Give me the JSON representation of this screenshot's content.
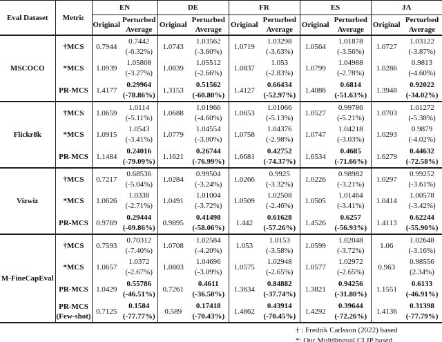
{
  "table": {
    "header": {
      "eval_dataset": "Eval Dataset",
      "metric": "Metric",
      "languages": [
        "EN",
        "DE",
        "FR",
        "ES",
        "JA"
      ],
      "original_label": "Original",
      "perturbed_label_line1": "Perturbed",
      "perturbed_label_line2": "Average"
    },
    "groups": [
      {
        "dataset": "MSCOCO",
        "rows": [
          {
            "metric": "†MCS",
            "metric2": "",
            "bold": false,
            "cells": [
              {
                "orig": "0.7944",
                "pert": "0.7442",
                "pct": "(-6.32%)"
              },
              {
                "orig": "1.0743",
                "pert": "1.03562",
                "pct": "(-3.60%)"
              },
              {
                "orig": "1.0719",
                "pert": "1.03298",
                "pct": "(-3.63%)"
              },
              {
                "orig": "1.0564",
                "pert": "1.01878",
                "pct": "(-3.56%)"
              },
              {
                "orig": "1.0727",
                "pert": "1.03122",
                "pct": "(-3.87%)"
              }
            ]
          },
          {
            "metric": "*MCS",
            "metric2": "",
            "bold": false,
            "cells": [
              {
                "orig": "1.0939",
                "pert": "1.05808",
                "pct": "(-3.27%)"
              },
              {
                "orig": "1.0839",
                "pert": "1.05512",
                "pct": "(-2.66%)"
              },
              {
                "orig": "1.0837",
                "pert": "1.053",
                "pct": "(-2.83%)"
              },
              {
                "orig": "1.0799",
                "pert": "1.04988",
                "pct": "(-2.78%)"
              },
              {
                "orig": "1.0286",
                "pert": "0.9813",
                "pct": "(-4.60%)"
              }
            ]
          },
          {
            "metric": "PR-MCS",
            "metric2": "",
            "bold": true,
            "cells": [
              {
                "orig": "1.4177",
                "pert": "0.29964",
                "pct": "(-78.86%)"
              },
              {
                "orig": "1.3153",
                "pert": "0.51562",
                "pct": "(-60.80%)"
              },
              {
                "orig": "1.4127",
                "pert": "0.66434",
                "pct": "(-52.97%)"
              },
              {
                "orig": "1.4086",
                "pert": "0.6814",
                "pct": "(-51.63%)"
              },
              {
                "orig": "1.3948",
                "pert": "0.92022",
                "pct": "(-34.02%)"
              }
            ]
          }
        ]
      },
      {
        "dataset": "Flickr8k",
        "rows": [
          {
            "metric": "†MCS",
            "metric2": "",
            "bold": false,
            "cells": [
              {
                "orig": "1.0659",
                "pert": "1.0114",
                "pct": "(-5.11%)"
              },
              {
                "orig": "1.0688",
                "pert": "1.01966",
                "pct": "(-4.60%)"
              },
              {
                "orig": "1.0653",
                "pert": "1.01066",
                "pct": "(-5.13%)"
              },
              {
                "orig": "1.0527",
                "pert": "0.99786",
                "pct": "(-5.21%)"
              },
              {
                "orig": "1.0703",
                "pert": "1.01272",
                "pct": "(-5.38%)"
              }
            ]
          },
          {
            "metric": "*MCS",
            "metric2": "",
            "bold": false,
            "cells": [
              {
                "orig": "1.0915",
                "pert": "1.0543",
                "pct": "(-3.41%)"
              },
              {
                "orig": "1.0779",
                "pert": "1.04554",
                "pct": "(-3.00%)"
              },
              {
                "orig": "1.0758",
                "pert": "1.04376",
                "pct": "(-2.98%)"
              },
              {
                "orig": "1.0747",
                "pert": "1.04218",
                "pct": "(-3.03%)"
              },
              {
                "orig": "1.0293",
                "pert": "0.9879",
                "pct": "(-4.02%)"
              }
            ]
          },
          {
            "metric": "PR-MCS",
            "metric2": "",
            "bold": true,
            "cells": [
              {
                "orig": "1.1484",
                "pert": "0.24016",
                "pct": "(-79.09%)"
              },
              {
                "orig": "1.1621",
                "pert": "0.26744",
                "pct": "(-76.99%)"
              },
              {
                "orig": "1.6681",
                "pert": "0.42752",
                "pct": "(-74.37%)"
              },
              {
                "orig": "1.6534",
                "pert": "0.4685",
                "pct": "(-71.66%)"
              },
              {
                "orig": "1.6279",
                "pert": "0.44632",
                "pct": "(-72.58%)"
              }
            ]
          }
        ]
      },
      {
        "dataset": "Vizwiz",
        "rows": [
          {
            "metric": "†MCS",
            "metric2": "",
            "bold": false,
            "cells": [
              {
                "orig": "0.7217",
                "pert": "0.68536",
                "pct": "(-5.04%)"
              },
              {
                "orig": "1.0284",
                "pert": "0.99504",
                "pct": "(-3.24%)"
              },
              {
                "orig": "1.0266",
                "pert": "0.9925",
                "pct": "(-3.32%)"
              },
              {
                "orig": "1.0226",
                "pert": "0.98982",
                "pct": "(-3.21%)"
              },
              {
                "orig": "1.0297",
                "pert": "0.99252",
                "pct": "(-3.61%)"
              }
            ]
          },
          {
            "metric": "*MCS",
            "metric2": "",
            "bold": false,
            "cells": [
              {
                "orig": "1.0626",
                "pert": "1.0338",
                "pct": "(-2.71%)"
              },
              {
                "orig": "1.0491",
                "pert": "1.01004",
                "pct": "(-3.72%)"
              },
              {
                "orig": "1.0509",
                "pert": "1.02508",
                "pct": "(-2.46%)"
              },
              {
                "orig": "1.0505",
                "pert": "1.01464",
                "pct": "(-3.41%)"
              },
              {
                "orig": "1.0414",
                "pert": "1.00578",
                "pct": "(-3.42%)"
              }
            ]
          },
          {
            "metric": "PR-MCS",
            "metric2": "",
            "bold": true,
            "cells": [
              {
                "orig": "0.9769",
                "pert": "0.29444",
                "pct": "(-69.86%)"
              },
              {
                "orig": "0.9895",
                "pert": "0.41498",
                "pct": "(-58.06%)"
              },
              {
                "orig": "1.442",
                "pert": "0.61628",
                "pct": "(-57.26%)"
              },
              {
                "orig": "1.4526",
                "pert": "0.6257",
                "pct": "(-56.93%)"
              },
              {
                "orig": "1.4113",
                "pert": "0.62244",
                "pct": "(-55.90%)"
              }
            ]
          }
        ]
      },
      {
        "dataset": "M-FineCapEval",
        "rows": [
          {
            "metric": "†MCS",
            "metric2": "",
            "bold": false,
            "cells": [
              {
                "orig": "0.7593",
                "pert": "0.70312",
                "pct": "(-7.40%)"
              },
              {
                "orig": "1.0708",
                "pert": "1.02584",
                "pct": "(-4.20%)"
              },
              {
                "orig": "1.053",
                "pert": "1.0153",
                "pct": "(-3.58%)"
              },
              {
                "orig": "1.0599",
                "pert": "1.02048",
                "pct": "(-3.72%)"
              },
              {
                "orig": "1.06",
                "pert": "1.02648",
                "pct": "(-3.16%)"
              }
            ]
          },
          {
            "metric": "*MCS",
            "metric2": "",
            "bold": false,
            "cells": [
              {
                "orig": "1.0657",
                "pert": "1.0372",
                "pct": "(-2.67%)"
              },
              {
                "orig": "1.0803",
                "pert": "1.04696",
                "pct": "(-3.09%)"
              },
              {
                "orig": "1.0575",
                "pert": "1.02948",
                "pct": "(-2.65%)"
              },
              {
                "orig": "1.0577",
                "pert": "1.02972",
                "pct": "(-2.65%)"
              },
              {
                "orig": "0.963",
                "pert": "0.98556",
                "pct": "(2.34%)"
              }
            ]
          },
          {
            "metric": "PR-MCS",
            "metric2": "",
            "bold": true,
            "cells": [
              {
                "orig": "1.0429",
                "pert": "0.55786",
                "pct": "(-46.51%)"
              },
              {
                "orig": "0.7261",
                "pert": "0.4611",
                "pct": "(-36.50%)"
              },
              {
                "orig": "1.3634",
                "pert": "0.84882",
                "pct": "(-37.74%)"
              },
              {
                "orig": "1.3821",
                "pert": "0.94256",
                "pct": "(-31.80%)"
              },
              {
                "orig": "1.1551",
                "pert": "0.6133",
                "pct": "(-46.91%)"
              }
            ]
          },
          {
            "metric": "PR-MCS",
            "metric2": "(Few-shot)",
            "bold": true,
            "cells": [
              {
                "orig": "0.7125",
                "pert": "0.1584",
                "pct": "(-77.77%)"
              },
              {
                "orig": "0.589",
                "pert": "0.17418",
                "pct": "(-70.43%)"
              },
              {
                "orig": "1.4862",
                "pert": "0.43914",
                "pct": "(-70.45%)"
              },
              {
                "orig": "1.4292",
                "pert": "0.39644",
                "pct": "(-72.26%)"
              },
              {
                "orig": "1.4136",
                "pert": "0.31398",
                "pct": "(-77.79%)"
              }
            ]
          }
        ]
      }
    ]
  },
  "footnotes": [
    "† : Fredrik Carlsson (2022) based",
    "*: Our Multilingual CLIP based"
  ]
}
